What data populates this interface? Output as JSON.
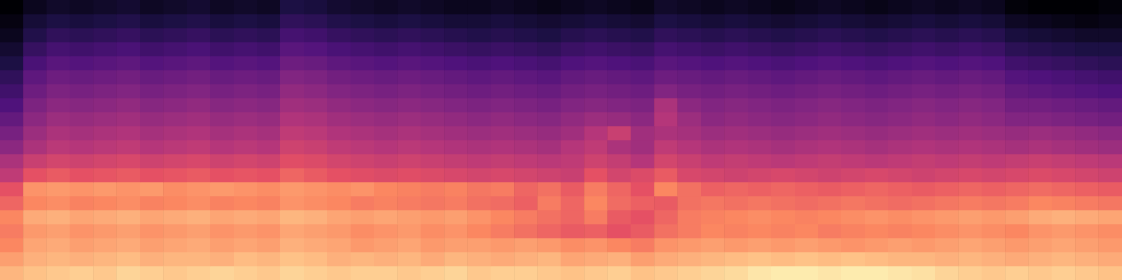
{
  "chart_data": {
    "type": "heatmap",
    "tick_labels": false,
    "zlim": [
      -80,
      0
    ],
    "z": [
      [
        -12,
        -10,
        -9,
        -8,
        -9,
        -7,
        -8,
        -9,
        -8,
        -7,
        -8,
        -9,
        -7,
        -8,
        -9,
        -8,
        -8,
        -9,
        -8,
        -7,
        -9,
        -8,
        -8,
        -9,
        -10,
        -9,
        -8,
        -10,
        -9,
        -8,
        -7,
        -6,
        -4,
        -3,
        -3,
        -4,
        -3,
        -3,
        -4,
        -5,
        -7,
        -8,
        -9,
        -8,
        -9,
        -8,
        -9,
        -10
      ],
      [
        -16,
        -13,
        -12,
        -13,
        -12,
        -11,
        -13,
        -12,
        -12,
        -13,
        -11,
        -12,
        -10,
        -11,
        -13,
        -12,
        -13,
        -12,
        -14,
        -12,
        -13,
        -14,
        -13,
        -12,
        -15,
        -14,
        -13,
        -16,
        -14,
        -13,
        -12,
        -11,
        -10,
        -11,
        -10,
        -11,
        -10,
        -11,
        -12,
        -12,
        -13,
        -12,
        -13,
        -14,
        -13,
        -12,
        -13,
        -14
      ],
      [
        -20,
        -15,
        -14,
        -16,
        -15,
        -14,
        -16,
        -15,
        -14,
        -16,
        -15,
        -16,
        -13,
        -14,
        -15,
        -17,
        -16,
        -15,
        -17,
        -16,
        -16,
        -17,
        -16,
        -17,
        -19,
        -18,
        -20,
        -22,
        -18,
        -17,
        -16,
        -17,
        -16,
        -17,
        -16,
        -17,
        -18,
        -17,
        -16,
        -17,
        -16,
        -15,
        -16,
        -17,
        -16,
        -15,
        -16,
        -17
      ],
      [
        -22,
        -17,
        -16,
        -18,
        -17,
        -16,
        -18,
        -17,
        -16,
        -18,
        -17,
        -18,
        -15,
        -16,
        -17,
        -19,
        -18,
        -17,
        -19,
        -18,
        -20,
        -22,
        -24,
        -26,
        -28,
        -27,
        -30,
        -28,
        -24,
        -22,
        -20,
        -21,
        -20,
        -21,
        -20,
        -22,
        -21,
        -20,
        -21,
        -20,
        -19,
        -18,
        -19,
        -20,
        -18,
        -17,
        -18,
        -19
      ],
      [
        -20,
        -14,
        -13,
        -15,
        -14,
        -13,
        -15,
        -14,
        -13,
        -15,
        -14,
        -15,
        -12,
        -13,
        -15,
        -16,
        -15,
        -16,
        -17,
        -16,
        -18,
        -20,
        -22,
        -24,
        -26,
        -22,
        -28,
        -30,
        -26,
        -22,
        -21,
        -20,
        -19,
        -20,
        -21,
        -20,
        -19,
        -18,
        -19,
        -18,
        -17,
        -16,
        -17,
        -16,
        -14,
        -13,
        -14,
        -15
      ],
      [
        -26,
        -20,
        -19,
        -21,
        -20,
        -19,
        -21,
        -20,
        -19,
        -21,
        -20,
        -21,
        -18,
        -19,
        -20,
        -22,
        -21,
        -22,
        -23,
        -22,
        -24,
        -25,
        -27,
        -22,
        -26,
        -20,
        -25,
        -27,
        -28,
        -24,
        -23,
        -24,
        -23,
        -24,
        -25,
        -24,
        -23,
        -24,
        -25,
        -24,
        -23,
        -22,
        -23,
        -22,
        -20,
        -21,
        -22,
        -23
      ],
      [
        -30,
        -18,
        -17,
        -18,
        -17,
        -18,
        -17,
        -19,
        -18,
        -17,
        -18,
        -19,
        -17,
        -18,
        -19,
        -18,
        -20,
        -21,
        -22,
        -21,
        -23,
        -22,
        -26,
        -24,
        -28,
        -22,
        -26,
        -30,
        -20,
        -24,
        -27,
        -26,
        -27,
        -26,
        -27,
        -28,
        -27,
        -26,
        -27,
        -28,
        -27,
        -26,
        -27,
        -26,
        -25,
        -26,
        -27,
        -28
      ],
      [
        -38,
        -30,
        -28,
        -30,
        -29,
        -28,
        -30,
        -29,
        -28,
        -30,
        -29,
        -30,
        -26,
        -28,
        -30,
        -31,
        -32,
        -31,
        -32,
        -33,
        -34,
        -33,
        -34,
        -35,
        -36,
        -30,
        -34,
        -32,
        -28,
        -33,
        -34,
        -35,
        -34,
        -33,
        -34,
        -35,
        -34,
        -33,
        -34,
        -35,
        -34,
        -33,
        -34,
        -33,
        -32,
        -33,
        -34,
        -35
      ],
      [
        -42,
        -36,
        -34,
        -35,
        -34,
        -33,
        -35,
        -34,
        -33,
        -35,
        -34,
        -35,
        -31,
        -32,
        -34,
        -35,
        -36,
        -35,
        -36,
        -37,
        -38,
        -37,
        -38,
        -39,
        -38,
        -35,
        -37,
        -40,
        -34,
        -36,
        -38,
        -37,
        -38,
        -39,
        -38,
        -37,
        -38,
        -39,
        -38,
        -37,
        -38,
        -37,
        -38,
        -37,
        -36,
        -37,
        -38,
        -39
      ],
      [
        -48,
        -42,
        -39,
        -40,
        -39,
        -38,
        -40,
        -39,
        -38,
        -40,
        -39,
        -40,
        -35,
        -36,
        -38,
        -39,
        -40,
        -39,
        -40,
        -41,
        -42,
        -41,
        -42,
        -43,
        -40,
        -38,
        -42,
        -44,
        -38,
        -40,
        -42,
        -41,
        -42,
        -43,
        -42,
        -41,
        -42,
        -43,
        -42,
        -41,
        -42,
        -41,
        -42,
        -43,
        -42,
        -43,
        -44,
        -45
      ],
      [
        -52,
        -45,
        -42,
        -43,
        -42,
        -41,
        -43,
        -42,
        -41,
        -43,
        -42,
        -43,
        -38,
        -39,
        -41,
        -42,
        -43,
        -42,
        -43,
        -44,
        -45,
        -44,
        -45,
        -46,
        -44,
        -40,
        -36,
        -44,
        -42,
        -43,
        -45,
        -44,
        -45,
        -46,
        -45,
        -44,
        -45,
        -46,
        -45,
        -44,
        -45,
        -44,
        -45,
        -46,
        -45,
        -46,
        -47,
        -48
      ],
      [
        -56,
        -48,
        -45,
        -46,
        -45,
        -44,
        -46,
        -45,
        -44,
        -46,
        -45,
        -46,
        -41,
        -42,
        -44,
        -45,
        -46,
        -45,
        -46,
        -47,
        -48,
        -47,
        -48,
        -49,
        -47,
        -45,
        -46,
        -48,
        -40,
        -45,
        -48,
        -47,
        -48,
        -49,
        -48,
        -47,
        -48,
        -49,
        -48,
        -47,
        -48,
        -47,
        -48,
        -50,
        -50,
        -51,
        -52,
        -53
      ],
      [
        -60,
        -51,
        -48,
        -49,
        -48,
        -47,
        -49,
        -48,
        -47,
        -49,
        -48,
        -49,
        -44,
        -45,
        -47,
        -48,
        -49,
        -48,
        -49,
        -50,
        -51,
        -50,
        -51,
        -52,
        -50,
        -49,
        -50,
        -51,
        -42,
        -48,
        -50,
        -49,
        -50,
        -51,
        -50,
        -49,
        -50,
        -51,
        -50,
        -49,
        -50,
        -49,
        -50,
        -53,
        -53,
        -54,
        -55,
        -56
      ],
      [
        -63,
        -54,
        -51,
        -52,
        -51,
        -50,
        -52,
        -51,
        -50,
        -52,
        -51,
        -52,
        -47,
        -48,
        -50,
        -51,
        -52,
        -51,
        -52,
        -53,
        -54,
        -53,
        -54,
        -55,
        -53,
        -52,
        -53,
        -54,
        -50,
        -52,
        -53,
        -52,
        -53,
        -54,
        -53,
        -52,
        -53,
        -54,
        -53,
        -52,
        -53,
        -52,
        -53,
        -56,
        -57,
        -58,
        -59,
        -60
      ],
      [
        -66,
        -57,
        -54,
        -55,
        -54,
        -53,
        -55,
        -54,
        -53,
        -55,
        -54,
        -55,
        -50,
        -51,
        -53,
        -54,
        -55,
        -54,
        -55,
        -56,
        -57,
        -56,
        -57,
        -58,
        -56,
        -55,
        -56,
        -57,
        -54,
        -55,
        -56,
        -55,
        -56,
        -57,
        -56,
        -55,
        -56,
        -57,
        -56,
        -55,
        -56,
        -55,
        -56,
        -59,
        -60,
        -61,
        -62,
        -63
      ],
      [
        -70,
        -61,
        -58,
        -59,
        -58,
        -57,
        -59,
        -58,
        -57,
        -59,
        -58,
        -59,
        -54,
        -55,
        -57,
        -58,
        -59,
        -58,
        -59,
        -60,
        -61,
        -60,
        -61,
        -62,
        -60,
        -59,
        -60,
        -61,
        -58,
        -59,
        -60,
        -59,
        -60,
        -61,
        -60,
        -59,
        -60,
        -61,
        -60,
        -59,
        -60,
        -59,
        -60,
        -63,
        -64,
        -65,
        -66,
        -67
      ],
      [
        -73,
        -65,
        -62,
        -63,
        -62,
        -61,
        -63,
        -62,
        -61,
        -63,
        -62,
        -63,
        -58,
        -59,
        -61,
        -62,
        -63,
        -62,
        -63,
        -64,
        -65,
        -64,
        -65,
        -66,
        -64,
        -63,
        -64,
        -65,
        -62,
        -63,
        -64,
        -63,
        -64,
        -65,
        -64,
        -63,
        -64,
        -65,
        -64,
        -63,
        -64,
        -63,
        -64,
        -67,
        -68,
        -69,
        -70,
        -70
      ],
      [
        -76,
        -69,
        -66,
        -67,
        -66,
        -65,
        -67,
        -66,
        -65,
        -67,
        -66,
        -67,
        -62,
        -63,
        -65,
        -66,
        -67,
        -66,
        -67,
        -68,
        -69,
        -68,
        -69,
        -70,
        -68,
        -67,
        -68,
        -69,
        -66,
        -67,
        -68,
        -67,
        -68,
        -69,
        -68,
        -67,
        -68,
        -69,
        -68,
        -67,
        -68,
        -67,
        -68,
        -71,
        -72,
        -73,
        -74,
        -74
      ],
      [
        -78,
        -72,
        -70,
        -71,
        -70,
        -69,
        -71,
        -70,
        -69,
        -71,
        -70,
        -71,
        -66,
        -67,
        -69,
        -70,
        -71,
        -70,
        -71,
        -72,
        -72,
        -71,
        -72,
        -73,
        -72,
        -71,
        -72,
        -73,
        -70,
        -71,
        -72,
        -71,
        -72,
        -73,
        -72,
        -71,
        -72,
        -73,
        -72,
        -71,
        -72,
        -71,
        -72,
        -75,
        -76,
        -77,
        -78,
        -77
      ],
      [
        -80,
        -76,
        -74,
        -75,
        -74,
        -73,
        -75,
        -74,
        -73,
        -75,
        -74,
        -75,
        -70,
        -71,
        -73,
        -74,
        -75,
        -74,
        -75,
        -76,
        -76,
        -75,
        -76,
        -77,
        -76,
        -75,
        -76,
        -77,
        -74,
        -75,
        -76,
        -75,
        -76,
        -77,
        -76,
        -75,
        -76,
        -77,
        -76,
        -75,
        -76,
        -75,
        -76,
        -79,
        -80,
        -80,
        -80,
        -79
      ]
    ]
  }
}
